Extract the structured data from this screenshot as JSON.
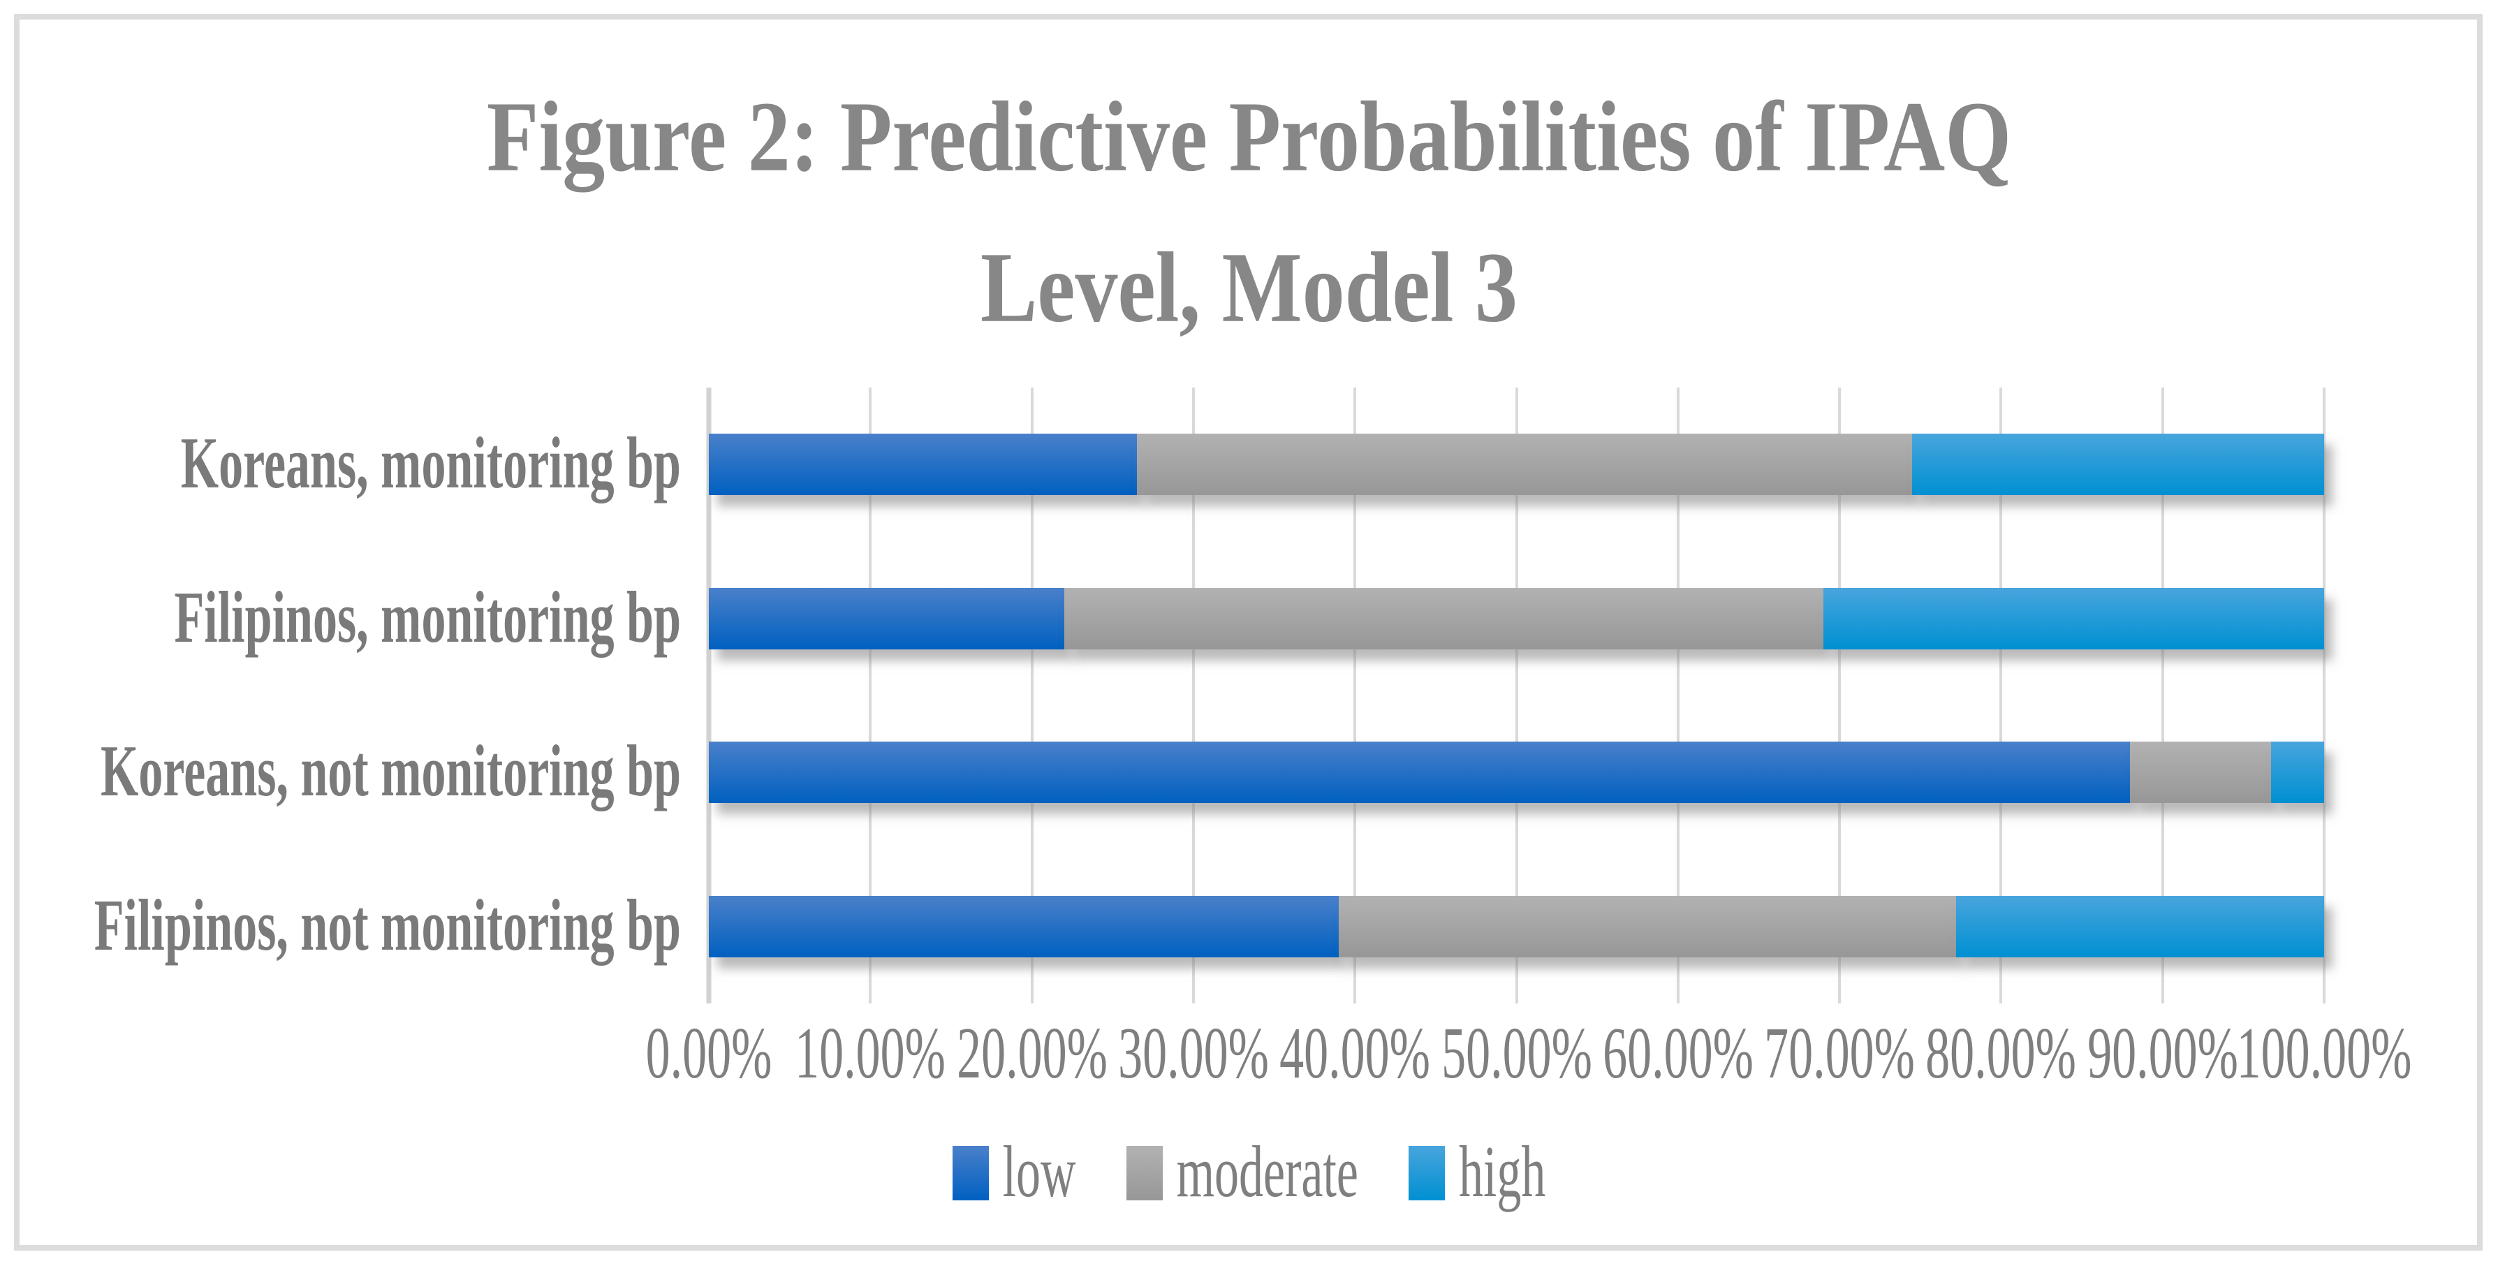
{
  "figure": {
    "title": "Figure 2: Predictive Probabilities of IPAQ Level, Model 3",
    "title_lines": [
      "Figure 2: Predictive Probabilities of IPAQ",
      "Level, Model 3"
    ]
  },
  "chart_data": {
    "type": "bar",
    "orientation": "horizontal",
    "stacked": true,
    "title": "Figure 2: Predictive Probabilities of IPAQ Level, Model 3",
    "categories": [
      "Koreans, monitoring bp",
      "Filipinos, monitoring bp",
      "Koreans, not monitoring bp",
      "Filipinos, not monitoring bp"
    ],
    "series": [
      {
        "name": "low",
        "color_top": "#4a80ca",
        "color_bottom": "#0060c0",
        "values": [
          26.5,
          22.0,
          88.0,
          39.0
        ]
      },
      {
        "name": "moderate",
        "color_top": "#b2b2b2",
        "color_bottom": "#979797",
        "values": [
          48.0,
          47.0,
          8.7,
          38.2
        ]
      },
      {
        "name": "high",
        "color_top": "#48a5dd",
        "color_bottom": "#0090d2",
        "values": [
          25.5,
          31.0,
          3.3,
          22.8
        ]
      }
    ],
    "x_axis": {
      "min": 0,
      "max": 100,
      "unit": "%",
      "grid": true,
      "tick_labels": [
        "0.00%",
        "10.00%",
        "20.00%",
        "30.00%",
        "40.00%",
        "50.00%",
        "60.00%",
        "70.00%",
        "80.00%",
        "90.00%",
        "100.00%"
      ]
    },
    "legend": {
      "position": "bottom",
      "entries": [
        "low",
        "moderate",
        "high"
      ]
    },
    "colors": {
      "text": "#7f7f7f",
      "title_text": "#878787",
      "gridline": "#d9d9d9",
      "axis_line": "#d2d2d2",
      "frame_border": "#dcdcdc",
      "background": "#ffffff"
    }
  }
}
